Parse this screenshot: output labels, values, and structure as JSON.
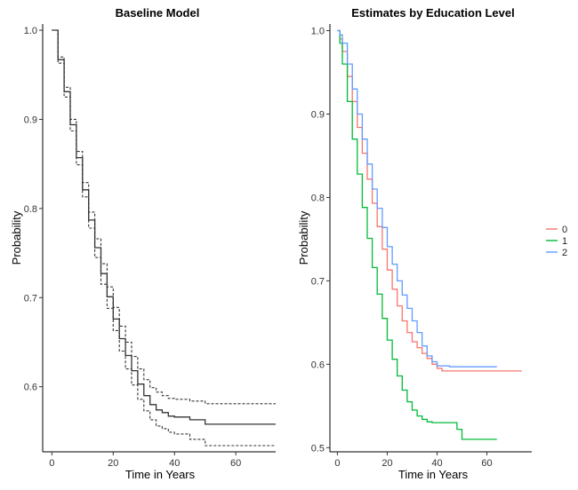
{
  "chart_data": [
    {
      "type": "line",
      "title": "Baseline Model",
      "xlabel": "Time in Years",
      "ylabel": "Probability",
      "xlim": [
        -3,
        73
      ],
      "ylim": [
        0.527,
        1.007
      ],
      "xticks": [
        0,
        20,
        40,
        60
      ],
      "yticks": [
        0.6,
        0.7,
        0.8,
        0.9,
        1.0
      ],
      "x_tick_labels": [
        "0",
        "20",
        "40",
        "60"
      ],
      "y_tick_labels": [
        "0.6",
        "0.7",
        "0.8",
        "0.9",
        "1.0"
      ],
      "grid": false,
      "series": [
        {
          "style": "solid",
          "color": "#333333",
          "x": [
            0,
            2,
            4,
            6,
            8,
            10,
            12,
            14,
            16,
            18,
            20,
            22,
            24,
            26,
            28,
            30,
            32,
            34,
            36,
            38,
            40,
            45,
            50,
            55,
            60,
            65,
            70,
            73
          ],
          "y": [
            1.0,
            0.967,
            0.931,
            0.894,
            0.857,
            0.821,
            0.787,
            0.756,
            0.727,
            0.701,
            0.676,
            0.654,
            0.635,
            0.618,
            0.603,
            0.59,
            0.58,
            0.574,
            0.571,
            0.567,
            0.566,
            0.563,
            0.558,
            0.558,
            0.558,
            0.558,
            0.558,
            0.558
          ]
        },
        {
          "style": "dashed",
          "color": "#333333",
          "x": [
            0,
            2,
            4,
            6,
            8,
            10,
            12,
            14,
            16,
            18,
            20,
            22,
            24,
            26,
            28,
            30,
            32,
            34,
            36,
            38,
            40,
            45,
            50,
            55,
            60,
            65,
            70,
            73
          ],
          "y": [
            1.0,
            0.97,
            0.936,
            0.9,
            0.864,
            0.829,
            0.796,
            0.766,
            0.738,
            0.712,
            0.689,
            0.668,
            0.65,
            0.634,
            0.62,
            0.608,
            0.599,
            0.594,
            0.59,
            0.587,
            0.586,
            0.584,
            0.581,
            0.581,
            0.581,
            0.581,
            0.581,
            0.581
          ]
        },
        {
          "style": "dashed",
          "color": "#333333",
          "x": [
            0,
            2,
            4,
            6,
            8,
            10,
            12,
            14,
            16,
            18,
            20,
            22,
            24,
            26,
            28,
            30,
            32,
            34,
            36,
            38,
            40,
            45,
            50,
            55,
            60,
            65,
            70,
            73
          ],
          "y": [
            1.0,
            0.963,
            0.925,
            0.887,
            0.849,
            0.813,
            0.778,
            0.745,
            0.715,
            0.688,
            0.663,
            0.64,
            0.62,
            0.602,
            0.586,
            0.573,
            0.563,
            0.556,
            0.553,
            0.549,
            0.547,
            0.541,
            0.534,
            0.534,
            0.534,
            0.534,
            0.534,
            0.534
          ]
        }
      ]
    },
    {
      "type": "line",
      "title": "Estimates by Education Level",
      "xlabel": "Time in Years",
      "ylabel": "Probability",
      "xlim": [
        -3,
        78
      ],
      "ylim": [
        0.495,
        1.008
      ],
      "xticks": [
        0,
        20,
        40,
        60
      ],
      "yticks": [
        0.5,
        0.6,
        0.7,
        0.8,
        0.9,
        1.0
      ],
      "x_tick_labels": [
        "0",
        "20",
        "40",
        "60"
      ],
      "y_tick_labels": [
        "0.5",
        "0.6",
        "0.7",
        "0.8",
        "0.9",
        "1.0"
      ],
      "grid": false,
      "legend": {
        "placement": "right",
        "entries": [
          "0",
          "1",
          "2"
        ]
      },
      "series": [
        {
          "name": "0",
          "color": "#F8766D",
          "x": [
            0,
            1,
            2,
            4,
            6,
            8,
            10,
            12,
            14,
            16,
            18,
            20,
            22,
            24,
            26,
            28,
            30,
            32,
            34,
            36,
            38,
            40,
            42,
            45,
            50,
            60,
            70,
            74
          ],
          "y": [
            1.0,
            0.99,
            0.975,
            0.945,
            0.915,
            0.884,
            0.853,
            0.822,
            0.793,
            0.765,
            0.738,
            0.713,
            0.69,
            0.67,
            0.652,
            0.638,
            0.627,
            0.62,
            0.613,
            0.607,
            0.6,
            0.595,
            0.592,
            0.592,
            0.592,
            0.592,
            0.592,
            0.592
          ]
        },
        {
          "name": "1",
          "color": "#00BA38",
          "x": [
            0,
            1,
            2,
            4,
            6,
            8,
            10,
            12,
            14,
            16,
            18,
            20,
            22,
            24,
            26,
            28,
            30,
            32,
            34,
            36,
            38,
            40,
            45,
            48,
            50,
            55,
            60,
            64
          ],
          "y": [
            1.0,
            0.985,
            0.96,
            0.915,
            0.87,
            0.828,
            0.788,
            0.751,
            0.716,
            0.684,
            0.655,
            0.629,
            0.606,
            0.586,
            0.569,
            0.555,
            0.545,
            0.538,
            0.534,
            0.531,
            0.53,
            0.53,
            0.53,
            0.522,
            0.51,
            0.51,
            0.51,
            0.51
          ]
        },
        {
          "name": "2",
          "color": "#619CFF",
          "x": [
            0,
            1,
            2,
            4,
            6,
            8,
            10,
            12,
            14,
            16,
            18,
            20,
            22,
            24,
            26,
            28,
            30,
            32,
            34,
            36,
            38,
            40,
            45,
            50,
            55,
            60,
            64
          ],
          "y": [
            1.0,
            0.995,
            0.985,
            0.96,
            0.93,
            0.9,
            0.87,
            0.84,
            0.81,
            0.787,
            0.764,
            0.741,
            0.72,
            0.7,
            0.683,
            0.667,
            0.652,
            0.638,
            0.622,
            0.61,
            0.603,
            0.598,
            0.597,
            0.597,
            0.597,
            0.597,
            0.597
          ]
        }
      ]
    }
  ]
}
